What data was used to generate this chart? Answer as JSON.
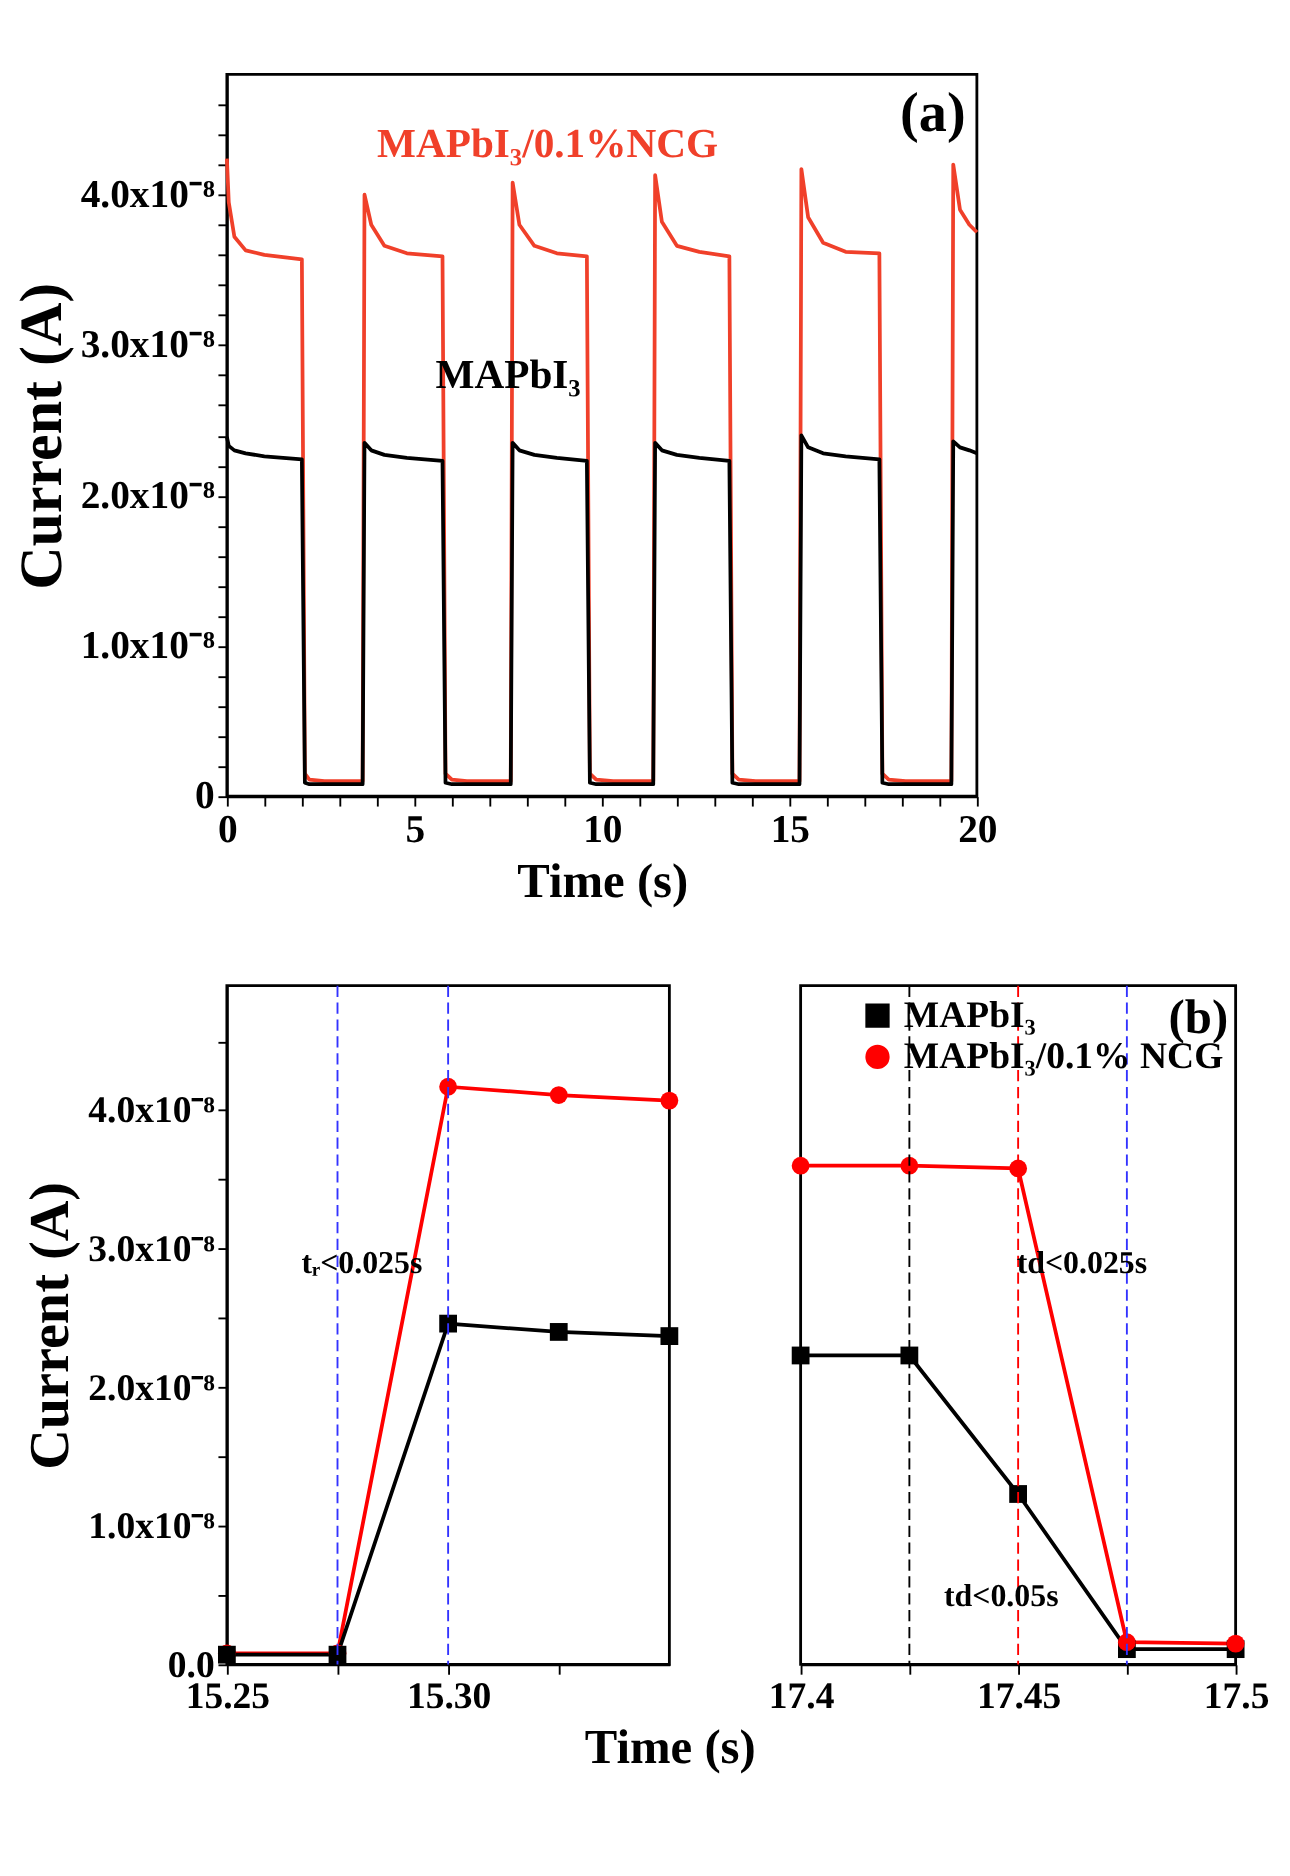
{
  "chart_data": [
    {
      "type": "line",
      "xlabel": "Time (s)",
      "ylabel": "Current (A)",
      "annotations": [
        "(a)"
      ],
      "x": [
        0,
        0.05,
        0.2,
        0.5,
        1.0,
        2.0,
        2.08,
        2.2,
        2.6,
        3.62,
        3.67,
        3.85,
        4.2,
        4.8,
        5.75,
        5.83,
        6.0,
        6.4,
        7.57,
        7.62,
        7.8,
        8.2,
        8.8,
        9.6,
        9.68,
        9.85,
        10.3,
        11.37,
        11.42,
        11.6,
        12.0,
        12.6,
        13.4,
        13.48,
        13.65,
        14.1,
        15.27,
        15.32,
        15.5,
        15.9,
        16.5,
        17.4,
        17.48,
        17.65,
        18.1,
        19.32,
        19.37,
        19.55,
        19.8,
        20
      ],
      "series": [
        {
          "name": "MAPbI₃/0.1%NCG",
          "color": "#f0402a",
          "values": [
            4.24e-08,
            3.95e-08,
            3.72e-08,
            3.63e-08,
            3.6e-08,
            3.57e-08,
            1.5e-09,
            1.1e-09,
            1e-09,
            1e-09,
            4e-08,
            3.8e-08,
            3.66e-08,
            3.61e-08,
            3.59e-08,
            1.5e-09,
            1.1e-09,
            1e-09,
            1e-09,
            4.08e-08,
            3.8e-08,
            3.66e-08,
            3.61e-08,
            3.59e-08,
            1.5e-09,
            1.1e-09,
            1e-09,
            1e-09,
            4.13e-08,
            3.82e-08,
            3.66e-08,
            3.62e-08,
            3.59e-08,
            1.5e-09,
            1.1e-09,
            1e-09,
            1e-09,
            4.17e-08,
            3.85e-08,
            3.68e-08,
            3.62e-08,
            3.61e-08,
            1.5e-09,
            1.1e-09,
            1e-09,
            1e-09,
            4.2e-08,
            3.9e-08,
            3.8e-08,
            3.75e-08
          ]
        },
        {
          "name": "MAPbI₃",
          "color": "#000000",
          "values": [
            2.39e-08,
            2.33e-08,
            2.3e-08,
            2.28e-08,
            2.26e-08,
            2.24e-08,
            9e-10,
            8e-10,
            8e-10,
            8e-10,
            2.35e-08,
            2.3e-08,
            2.27e-08,
            2.25e-08,
            2.23e-08,
            9e-10,
            8e-10,
            8e-10,
            8e-10,
            2.35e-08,
            2.3e-08,
            2.27e-08,
            2.25e-08,
            2.23e-08,
            9e-10,
            8e-10,
            8e-10,
            8e-10,
            2.35e-08,
            2.3e-08,
            2.27e-08,
            2.25e-08,
            2.23e-08,
            9e-10,
            8e-10,
            8e-10,
            8e-10,
            2.4e-08,
            2.32e-08,
            2.28e-08,
            2.26e-08,
            2.24e-08,
            9e-10,
            8e-10,
            8e-10,
            8e-10,
            2.36e-08,
            2.32e-08,
            2.3e-08,
            2.28e-08
          ]
        }
      ],
      "xlim": [
        0,
        20
      ],
      "ylim": [
        0,
        4.8e-08
      ],
      "xticks": [
        0,
        {
          "value": 1,
          "label": null
        },
        {
          "value": 2,
          "label": null
        },
        {
          "value": 3,
          "label": null
        },
        {
          "value": 4,
          "label": null
        },
        5,
        {
          "value": 6,
          "label": null
        },
        {
          "value": 7,
          "label": null
        },
        {
          "value": 8,
          "label": null
        },
        {
          "value": 9,
          "label": null
        },
        10,
        {
          "value": 11,
          "label": null
        },
        {
          "value": 12,
          "label": null
        },
        {
          "value": 13,
          "label": null
        },
        {
          "value": 14,
          "label": null
        },
        15,
        {
          "value": 16,
          "label": null
        },
        {
          "value": 17,
          "label": null
        },
        {
          "value": 18,
          "label": null
        },
        {
          "value": 19,
          "label": null
        },
        20
      ],
      "yticks": [
        0,
        {
          "value": 2e-09,
          "label": null
        },
        {
          "value": 4e-09,
          "label": null
        },
        {
          "value": 6e-09,
          "label": null
        },
        {
          "value": 8e-09,
          "label": null
        },
        {
          "value": 1e-08,
          "label": "1.0x10⁻⁸"
        },
        {
          "value": 1.2e-08,
          "label": null
        },
        {
          "value": 1.4e-08,
          "label": null
        },
        {
          "value": 1.6e-08,
          "label": null
        },
        {
          "value": 1.8e-08,
          "label": null
        },
        {
          "value": 2e-08,
          "label": "2.0x10⁻⁸"
        },
        {
          "value": 2.2e-08,
          "label": null
        },
        {
          "value": 2.4e-08,
          "label": null
        },
        {
          "value": 2.6e-08,
          "label": null
        },
        {
          "value": 2.8e-08,
          "label": null
        },
        {
          "value": 3e-08,
          "label": "3.0x10⁻⁸"
        },
        {
          "value": 3.2e-08,
          "label": null
        },
        {
          "value": 3.4e-08,
          "label": null
        },
        {
          "value": 3.6e-08,
          "label": null
        },
        {
          "value": 3.8e-08,
          "label": null
        },
        {
          "value": 4e-08,
          "label": "4.0x10⁻⁸"
        },
        {
          "value": 4.2e-08,
          "label": null
        },
        {
          "value": 4.4e-08,
          "label": null
        },
        {
          "value": 4.6e-08,
          "label": null
        }
      ],
      "marker": "none",
      "line_style": "solid",
      "grid": false,
      "legend": false
    },
    {
      "type": "line",
      "xlabel": "Time (s)",
      "ylabel": "Current (A)",
      "annotations": [
        "tᵣ<0.025s"
      ],
      "x": [
        15.25,
        15.275,
        15.3,
        15.325,
        15.35
      ],
      "series": [
        {
          "color": "#ff0000",
          "marker": "circle",
          "values": [
            8e-10,
            8e-10,
            4.17e-08,
            4.11e-08,
            4.07e-08
          ]
        },
        {
          "color": "#000000",
          "marker": "square",
          "values": [
            7e-10,
            7e-10,
            2.46e-08,
            2.4e-08,
            2.37e-08
          ]
        }
      ],
      "xlim": [
        15.25,
        15.35
      ],
      "ylim": [
        0,
        4.9e-08
      ],
      "xticks": [
        15.25,
        {
          "value": 15.275,
          "label": null
        },
        {
          "value": 15.3,
          "label": "15.30"
        },
        {
          "value": 15.325,
          "label": null
        }
      ],
      "yticks": [
        {
          "value": 0,
          "label": "0.0"
        },
        {
          "value": 5e-09,
          "label": null
        },
        {
          "value": 1e-08,
          "label": "1.0x10⁻⁸"
        },
        {
          "value": 1.5e-08,
          "label": null
        },
        {
          "value": 2e-08,
          "label": "2.0x10⁻⁸"
        },
        {
          "value": 2.5e-08,
          "label": null
        },
        {
          "value": 3e-08,
          "label": "3.0x10⁻⁸"
        },
        {
          "value": 3.5e-08,
          "label": null
        },
        {
          "value": 4e-08,
          "label": "4.0x10⁻⁸"
        },
        {
          "value": 4.5e-08,
          "label": null
        }
      ],
      "ref_lines": [
        {
          "axis": "x",
          "value": 15.275,
          "color": "#3333ff",
          "line_style": "dashed"
        },
        {
          "axis": "x",
          "value": 15.3,
          "color": "#3333ff",
          "line_style": "dashed"
        }
      ],
      "line_style": "solid",
      "grid": false,
      "legend": false
    },
    {
      "type": "line",
      "annotations": [
        "(b)",
        "td<0.025s",
        "td<0.05s"
      ],
      "x": [
        17.4,
        17.425,
        17.45,
        17.475,
        17.5
      ],
      "series": [
        {
          "name": "MAPbI₃",
          "color": "#000000",
          "marker": "square",
          "values": [
            2.23e-08,
            2.23e-08,
            1.23e-08,
            1.1e-09,
            1.1e-09
          ]
        },
        {
          "name": "MAPbI₃/0.1% NCG",
          "color": "#ff0000",
          "marker": "circle",
          "values": [
            3.6e-08,
            3.6e-08,
            3.58e-08,
            1.6e-09,
            1.5e-09
          ]
        }
      ],
      "xlim": [
        17.4,
        17.5
      ],
      "ylim": [
        0,
        4.9e-08
      ],
      "xticks": [
        17.4,
        {
          "value": 17.425,
          "label": null
        },
        17.45,
        {
          "value": 17.475,
          "label": null
        },
        17.5
      ],
      "tick_labels": "x",
      "ref_lines": [
        {
          "axis": "x",
          "value": 17.425,
          "color": "#000000",
          "line_style": "dashed"
        },
        {
          "axis": "x",
          "value": 17.45,
          "color": "#ff0000",
          "line_style": "dashed"
        },
        {
          "axis": "x",
          "value": 17.475,
          "color": "#3333ff",
          "line_style": "dashed"
        }
      ],
      "line_style": "solid",
      "grid": false,
      "legend": "top right"
    }
  ]
}
